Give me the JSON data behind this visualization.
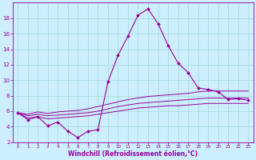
{
  "x": [
    0,
    1,
    2,
    3,
    4,
    5,
    6,
    7,
    8,
    9,
    10,
    11,
    12,
    13,
    14,
    15,
    16,
    17,
    18,
    19,
    20,
    21,
    22,
    23
  ],
  "line_main": [
    5.8,
    4.9,
    5.3,
    4.1,
    4.6,
    3.4,
    2.6,
    3.4,
    3.6,
    9.8,
    13.2,
    15.7,
    18.4,
    19.2,
    17.3,
    14.5,
    12.2,
    11.0,
    9.0,
    8.8,
    8.5,
    7.5,
    7.6,
    7.4
  ],
  "line_top": [
    5.8,
    5.6,
    5.9,
    5.7,
    5.9,
    6.0,
    6.1,
    6.3,
    6.6,
    6.9,
    7.2,
    7.5,
    7.7,
    7.9,
    8.0,
    8.1,
    8.2,
    8.3,
    8.5,
    8.6,
    8.6,
    8.6,
    8.6,
    8.6
  ],
  "line_mid": [
    5.8,
    5.4,
    5.6,
    5.4,
    5.5,
    5.6,
    5.7,
    5.8,
    6.0,
    6.3,
    6.6,
    6.8,
    7.0,
    7.1,
    7.2,
    7.3,
    7.4,
    7.5,
    7.6,
    7.7,
    7.7,
    7.7,
    7.7,
    7.7
  ],
  "line_bot": [
    5.8,
    5.1,
    5.3,
    5.0,
    5.1,
    5.2,
    5.3,
    5.4,
    5.6,
    5.8,
    6.0,
    6.2,
    6.4,
    6.5,
    6.6,
    6.7,
    6.7,
    6.8,
    6.9,
    7.0,
    7.0,
    7.0,
    7.0,
    7.0
  ],
  "color_main": "#990099",
  "bg_color": "#cceeff",
  "grid_color": "#aadddd",
  "xlabel": "Windchill (Refroidissement éolien,°C)",
  "ylim": [
    2,
    20
  ],
  "xlim": [
    -0.5,
    23.5
  ],
  "yticks": [
    2,
    4,
    6,
    8,
    10,
    12,
    14,
    16,
    18
  ],
  "xticks": [
    0,
    1,
    2,
    3,
    4,
    5,
    6,
    7,
    8,
    9,
    10,
    11,
    12,
    13,
    14,
    15,
    16,
    17,
    18,
    19,
    20,
    21,
    22,
    23
  ]
}
